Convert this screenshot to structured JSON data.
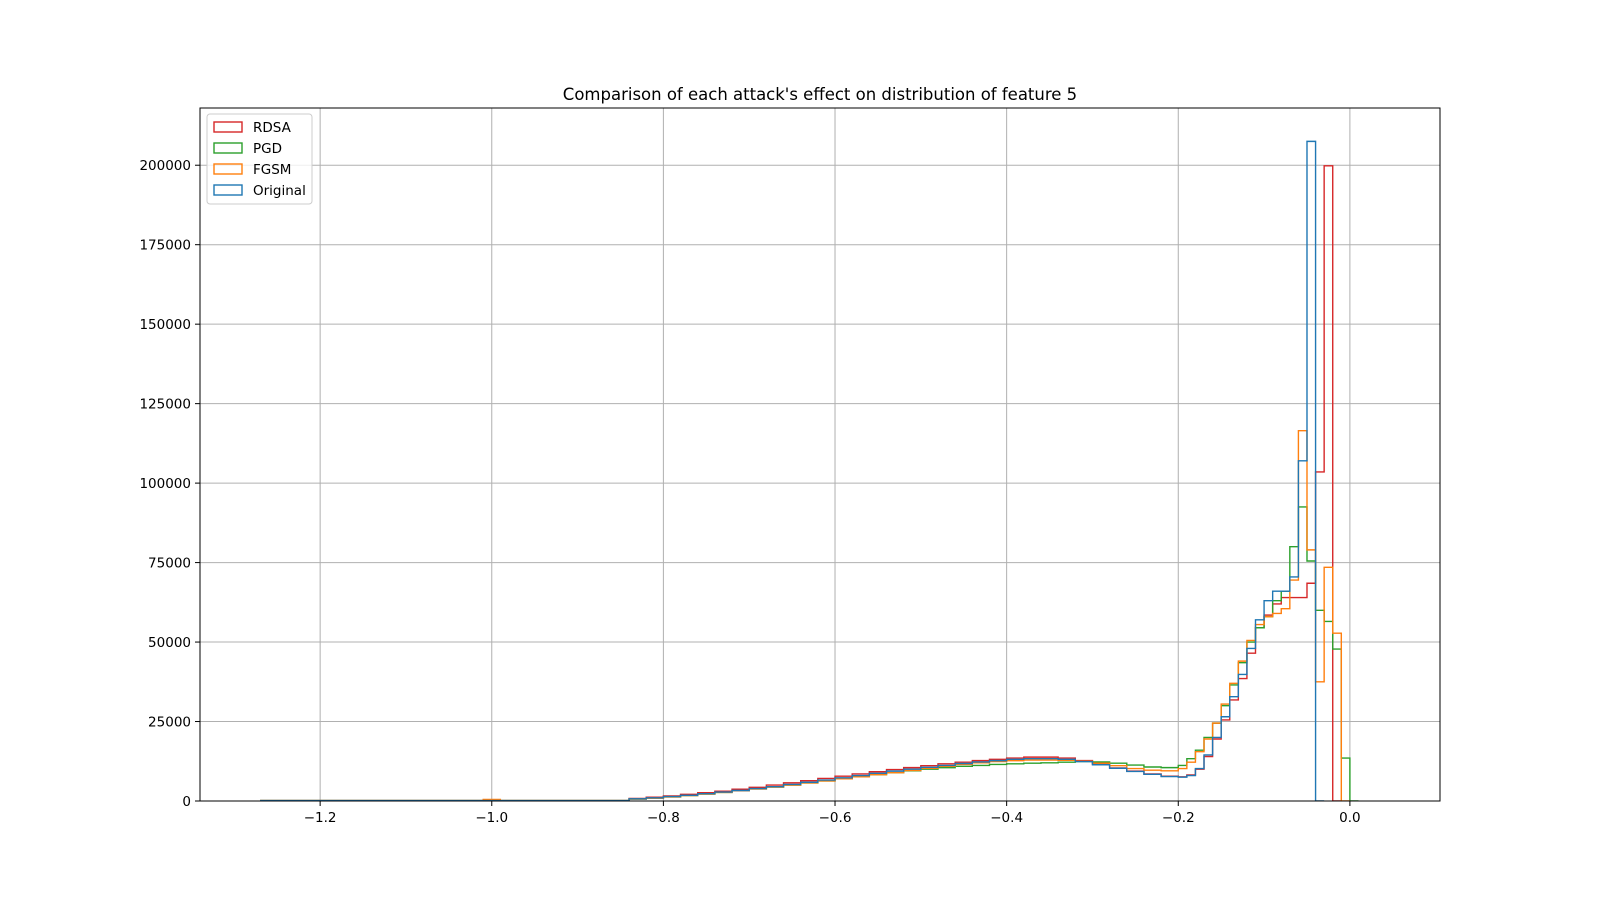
{
  "chart_data": {
    "type": "histogram",
    "title": "Comparison of each attack's effect on distribution of feature 5",
    "xlabel": "",
    "ylabel": "",
    "xlim": [
      -1.34,
      0.105
    ],
    "ylim": [
      0,
      218000
    ],
    "x_ticks": [
      {
        "value": -1.2,
        "label": "−1.2"
      },
      {
        "value": -1.0,
        "label": "−1.0"
      },
      {
        "value": -0.8,
        "label": "−0.8"
      },
      {
        "value": -0.6,
        "label": "−0.6"
      },
      {
        "value": -0.4,
        "label": "−0.4"
      },
      {
        "value": -0.2,
        "label": "−0.2"
      },
      {
        "value": 0.0,
        "label": "0.0"
      }
    ],
    "y_ticks": [
      {
        "value": 0,
        "label": "0"
      },
      {
        "value": 25000,
        "label": "25000"
      },
      {
        "value": 50000,
        "label": "50000"
      },
      {
        "value": 75000,
        "label": "75000"
      },
      {
        "value": 100000,
        "label": "100000"
      },
      {
        "value": 125000,
        "label": "125000"
      },
      {
        "value": 150000,
        "label": "150000"
      },
      {
        "value": 175000,
        "label": "175000"
      },
      {
        "value": 200000,
        "label": "200000"
      }
    ],
    "grid": true,
    "legend_position": "upper-left",
    "histtype": "step",
    "series": [
      {
        "name": "RDSA",
        "color": "#d62728",
        "bins": [
          [
            -0.84,
            -0.82,
            800
          ],
          [
            -0.82,
            -0.8,
            1200
          ],
          [
            -0.8,
            -0.78,
            1600
          ],
          [
            -0.78,
            -0.76,
            2100
          ],
          [
            -0.76,
            -0.74,
            2600
          ],
          [
            -0.74,
            -0.72,
            3100
          ],
          [
            -0.72,
            -0.7,
            3700
          ],
          [
            -0.7,
            -0.68,
            4300
          ],
          [
            -0.68,
            -0.66,
            5000
          ],
          [
            -0.66,
            -0.64,
            5700
          ],
          [
            -0.64,
            -0.62,
            6400
          ],
          [
            -0.62,
            -0.6,
            7100
          ],
          [
            -0.6,
            -0.58,
            7800
          ],
          [
            -0.58,
            -0.56,
            8500
          ],
          [
            -0.56,
            -0.54,
            9200
          ],
          [
            -0.54,
            -0.52,
            9900
          ],
          [
            -0.52,
            -0.5,
            10500
          ],
          [
            -0.5,
            -0.48,
            11100
          ],
          [
            -0.48,
            -0.46,
            11700
          ],
          [
            -0.46,
            -0.44,
            12200
          ],
          [
            -0.44,
            -0.42,
            12700
          ],
          [
            -0.42,
            -0.4,
            13100
          ],
          [
            -0.4,
            -0.38,
            13500
          ],
          [
            -0.38,
            -0.36,
            13800
          ],
          [
            -0.36,
            -0.34,
            13800
          ],
          [
            -0.34,
            -0.32,
            13500
          ],
          [
            -0.32,
            -0.3,
            12700
          ],
          [
            -0.3,
            -0.28,
            11600
          ],
          [
            -0.28,
            -0.26,
            10400
          ],
          [
            -0.26,
            -0.24,
            9400
          ],
          [
            -0.24,
            -0.22,
            8500
          ],
          [
            -0.22,
            -0.2,
            7800
          ],
          [
            -0.2,
            -0.19,
            7600
          ],
          [
            -0.19,
            -0.18,
            8200
          ],
          [
            -0.18,
            -0.17,
            10000
          ],
          [
            -0.17,
            -0.16,
            14000
          ],
          [
            -0.16,
            -0.15,
            19500
          ],
          [
            -0.15,
            -0.14,
            25500
          ],
          [
            -0.14,
            -0.13,
            31800
          ],
          [
            -0.13,
            -0.12,
            38500
          ],
          [
            -0.12,
            -0.11,
            46500
          ],
          [
            -0.11,
            -0.1,
            54500
          ],
          [
            -0.1,
            -0.09,
            58500
          ],
          [
            -0.09,
            -0.08,
            62000
          ],
          [
            -0.08,
            -0.07,
            64000
          ],
          [
            -0.07,
            -0.06,
            64000
          ],
          [
            -0.06,
            -0.05,
            64000
          ],
          [
            -0.05,
            -0.04,
            68500
          ],
          [
            -0.04,
            -0.03,
            103500
          ],
          [
            -0.03,
            -0.02,
            199800
          ],
          [
            -0.02,
            -0.01,
            0
          ]
        ]
      },
      {
        "name": "PGD",
        "color": "#2ca02c",
        "bins": [
          [
            -0.84,
            -0.82,
            600
          ],
          [
            -0.82,
            -0.8,
            900
          ],
          [
            -0.8,
            -0.78,
            1300
          ],
          [
            -0.78,
            -0.76,
            1700
          ],
          [
            -0.76,
            -0.74,
            2200
          ],
          [
            -0.74,
            -0.72,
            2700
          ],
          [
            -0.72,
            -0.7,
            3200
          ],
          [
            -0.7,
            -0.68,
            3800
          ],
          [
            -0.68,
            -0.66,
            4400
          ],
          [
            -0.66,
            -0.64,
            5000
          ],
          [
            -0.64,
            -0.62,
            5700
          ],
          [
            -0.62,
            -0.6,
            6300
          ],
          [
            -0.6,
            -0.58,
            7000
          ],
          [
            -0.58,
            -0.56,
            7600
          ],
          [
            -0.56,
            -0.54,
            8300
          ],
          [
            -0.54,
            -0.52,
            8900
          ],
          [
            -0.52,
            -0.5,
            9500
          ],
          [
            -0.5,
            -0.48,
            10000
          ],
          [
            -0.48,
            -0.46,
            10500
          ],
          [
            -0.46,
            -0.44,
            10900
          ],
          [
            -0.44,
            -0.42,
            11200
          ],
          [
            -0.42,
            -0.4,
            11500
          ],
          [
            -0.4,
            -0.38,
            11700
          ],
          [
            -0.38,
            -0.36,
            11900
          ],
          [
            -0.36,
            -0.34,
            12000
          ],
          [
            -0.34,
            -0.32,
            12200
          ],
          [
            -0.32,
            -0.3,
            12400
          ],
          [
            -0.3,
            -0.28,
            12300
          ],
          [
            -0.28,
            -0.26,
            11900
          ],
          [
            -0.26,
            -0.24,
            11300
          ],
          [
            -0.24,
            -0.22,
            10700
          ],
          [
            -0.22,
            -0.2,
            10500
          ],
          [
            -0.2,
            -0.19,
            11200
          ],
          [
            -0.19,
            -0.18,
            13300
          ],
          [
            -0.18,
            -0.17,
            16000
          ],
          [
            -0.17,
            -0.16,
            20000
          ],
          [
            -0.16,
            -0.15,
            24500
          ],
          [
            -0.15,
            -0.14,
            30000
          ],
          [
            -0.14,
            -0.13,
            36500
          ],
          [
            -0.13,
            -0.12,
            43500
          ],
          [
            -0.12,
            -0.11,
            50000
          ],
          [
            -0.11,
            -0.1,
            54500
          ],
          [
            -0.1,
            -0.09,
            58000
          ],
          [
            -0.09,
            -0.08,
            63000
          ],
          [
            -0.08,
            -0.07,
            66000
          ],
          [
            -0.07,
            -0.06,
            80000
          ],
          [
            -0.06,
            -0.05,
            92500
          ],
          [
            -0.05,
            -0.04,
            75500
          ],
          [
            -0.04,
            -0.03,
            60000
          ],
          [
            -0.03,
            -0.02,
            56500
          ],
          [
            -0.02,
            -0.01,
            47800
          ],
          [
            -0.01,
            0.0,
            13500
          ],
          [
            0.0,
            0.01,
            0
          ]
        ]
      },
      {
        "name": "FGSM",
        "color": "#ff7f0e",
        "bins": [
          [
            -0.84,
            -0.82,
            600
          ],
          [
            -0.82,
            -0.8,
            900
          ],
          [
            -0.8,
            -0.78,
            1300
          ],
          [
            -0.78,
            -0.76,
            1700
          ],
          [
            -0.76,
            -0.74,
            2200
          ],
          [
            -0.74,
            -0.72,
            2700
          ],
          [
            -0.72,
            -0.7,
            3200
          ],
          [
            -0.7,
            -0.68,
            3800
          ],
          [
            -0.68,
            -0.66,
            4400
          ],
          [
            -0.66,
            -0.64,
            5000
          ],
          [
            -0.64,
            -0.62,
            5700
          ],
          [
            -0.62,
            -0.6,
            6300
          ],
          [
            -0.6,
            -0.58,
            7000
          ],
          [
            -0.58,
            -0.56,
            7600
          ],
          [
            -0.56,
            -0.54,
            8300
          ],
          [
            -0.54,
            -0.52,
            8900
          ],
          [
            -0.52,
            -0.5,
            9600
          ],
          [
            -0.5,
            -0.48,
            10300
          ],
          [
            -0.48,
            -0.46,
            10900
          ],
          [
            -0.46,
            -0.44,
            11500
          ],
          [
            -0.44,
            -0.42,
            12000
          ],
          [
            -0.42,
            -0.4,
            12400
          ],
          [
            -0.4,
            -0.38,
            12700
          ],
          [
            -0.38,
            -0.36,
            12900
          ],
          [
            -0.36,
            -0.34,
            12900
          ],
          [
            -0.34,
            -0.32,
            12800
          ],
          [
            -0.32,
            -0.3,
            12500
          ],
          [
            -0.3,
            -0.28,
            11900
          ],
          [
            -0.28,
            -0.26,
            11100
          ],
          [
            -0.26,
            -0.24,
            10200
          ],
          [
            -0.24,
            -0.22,
            9700
          ],
          [
            -0.22,
            -0.2,
            9500
          ],
          [
            -0.2,
            -0.19,
            10200
          ],
          [
            -0.19,
            -0.18,
            12200
          ],
          [
            -0.18,
            -0.17,
            15500
          ],
          [
            -0.17,
            -0.16,
            19500
          ],
          [
            -0.16,
            -0.15,
            24500
          ],
          [
            -0.15,
            -0.14,
            30500
          ],
          [
            -0.14,
            -0.13,
            37000
          ],
          [
            -0.13,
            -0.12,
            44000
          ],
          [
            -0.12,
            -0.11,
            50500
          ],
          [
            -0.11,
            -0.1,
            55500
          ],
          [
            -0.1,
            -0.09,
            58000
          ],
          [
            -0.09,
            -0.08,
            59000
          ],
          [
            -0.08,
            -0.07,
            60500
          ],
          [
            -0.07,
            -0.06,
            69500
          ],
          [
            -0.06,
            -0.05,
            116500
          ],
          [
            -0.05,
            -0.04,
            79000
          ],
          [
            -0.04,
            -0.03,
            37500
          ],
          [
            -0.03,
            -0.02,
            73500
          ],
          [
            -0.02,
            -0.01,
            52800
          ],
          [
            -0.01,
            0.0,
            0
          ]
        ]
      },
      {
        "name": "Original",
        "color": "#1f77b4",
        "bins": [
          [
            -0.84,
            -0.82,
            700
          ],
          [
            -0.82,
            -0.8,
            1000
          ],
          [
            -0.8,
            -0.78,
            1400
          ],
          [
            -0.78,
            -0.76,
            1800
          ],
          [
            -0.76,
            -0.74,
            2300
          ],
          [
            -0.74,
            -0.72,
            2800
          ],
          [
            -0.72,
            -0.7,
            3300
          ],
          [
            -0.7,
            -0.68,
            3900
          ],
          [
            -0.68,
            -0.66,
            4500
          ],
          [
            -0.66,
            -0.64,
            5200
          ],
          [
            -0.64,
            -0.62,
            5900
          ],
          [
            -0.62,
            -0.6,
            6600
          ],
          [
            -0.6,
            -0.58,
            7300
          ],
          [
            -0.58,
            -0.56,
            8000
          ],
          [
            -0.56,
            -0.54,
            8700
          ],
          [
            -0.54,
            -0.52,
            9400
          ],
          [
            -0.52,
            -0.5,
            10000
          ],
          [
            -0.5,
            -0.48,
            10600
          ],
          [
            -0.48,
            -0.46,
            11200
          ],
          [
            -0.46,
            -0.44,
            11800
          ],
          [
            -0.44,
            -0.42,
            12300
          ],
          [
            -0.42,
            -0.4,
            12700
          ],
          [
            -0.4,
            -0.38,
            13100
          ],
          [
            -0.38,
            -0.36,
            13300
          ],
          [
            -0.36,
            -0.34,
            13300
          ],
          [
            -0.34,
            -0.32,
            13100
          ],
          [
            -0.32,
            -0.3,
            12400
          ],
          [
            -0.3,
            -0.28,
            11400
          ],
          [
            -0.28,
            -0.26,
            10300
          ],
          [
            -0.26,
            -0.24,
            9300
          ],
          [
            -0.24,
            -0.22,
            8400
          ],
          [
            -0.22,
            -0.2,
            7700
          ],
          [
            -0.2,
            -0.19,
            7500
          ],
          [
            -0.19,
            -0.18,
            8000
          ],
          [
            -0.18,
            -0.17,
            10200
          ],
          [
            -0.17,
            -0.16,
            14500
          ],
          [
            -0.16,
            -0.15,
            20000
          ],
          [
            -0.15,
            -0.14,
            26500
          ],
          [
            -0.14,
            -0.13,
            32800
          ],
          [
            -0.13,
            -0.12,
            39800
          ],
          [
            -0.12,
            -0.11,
            48000
          ],
          [
            -0.11,
            -0.1,
            57000
          ],
          [
            -0.1,
            -0.09,
            63000
          ],
          [
            -0.09,
            -0.08,
            66000
          ],
          [
            -0.08,
            -0.07,
            66000
          ],
          [
            -0.07,
            -0.06,
            70500
          ],
          [
            -0.06,
            -0.05,
            107000
          ],
          [
            -0.05,
            -0.04,
            207500
          ],
          [
            -0.04,
            -0.03,
            0
          ]
        ]
      }
    ],
    "sparse_tail": [
      -1.27,
      -0.84,
      150
    ],
    "minor_spike": [
      -1.01,
      -0.99,
      500
    ]
  }
}
